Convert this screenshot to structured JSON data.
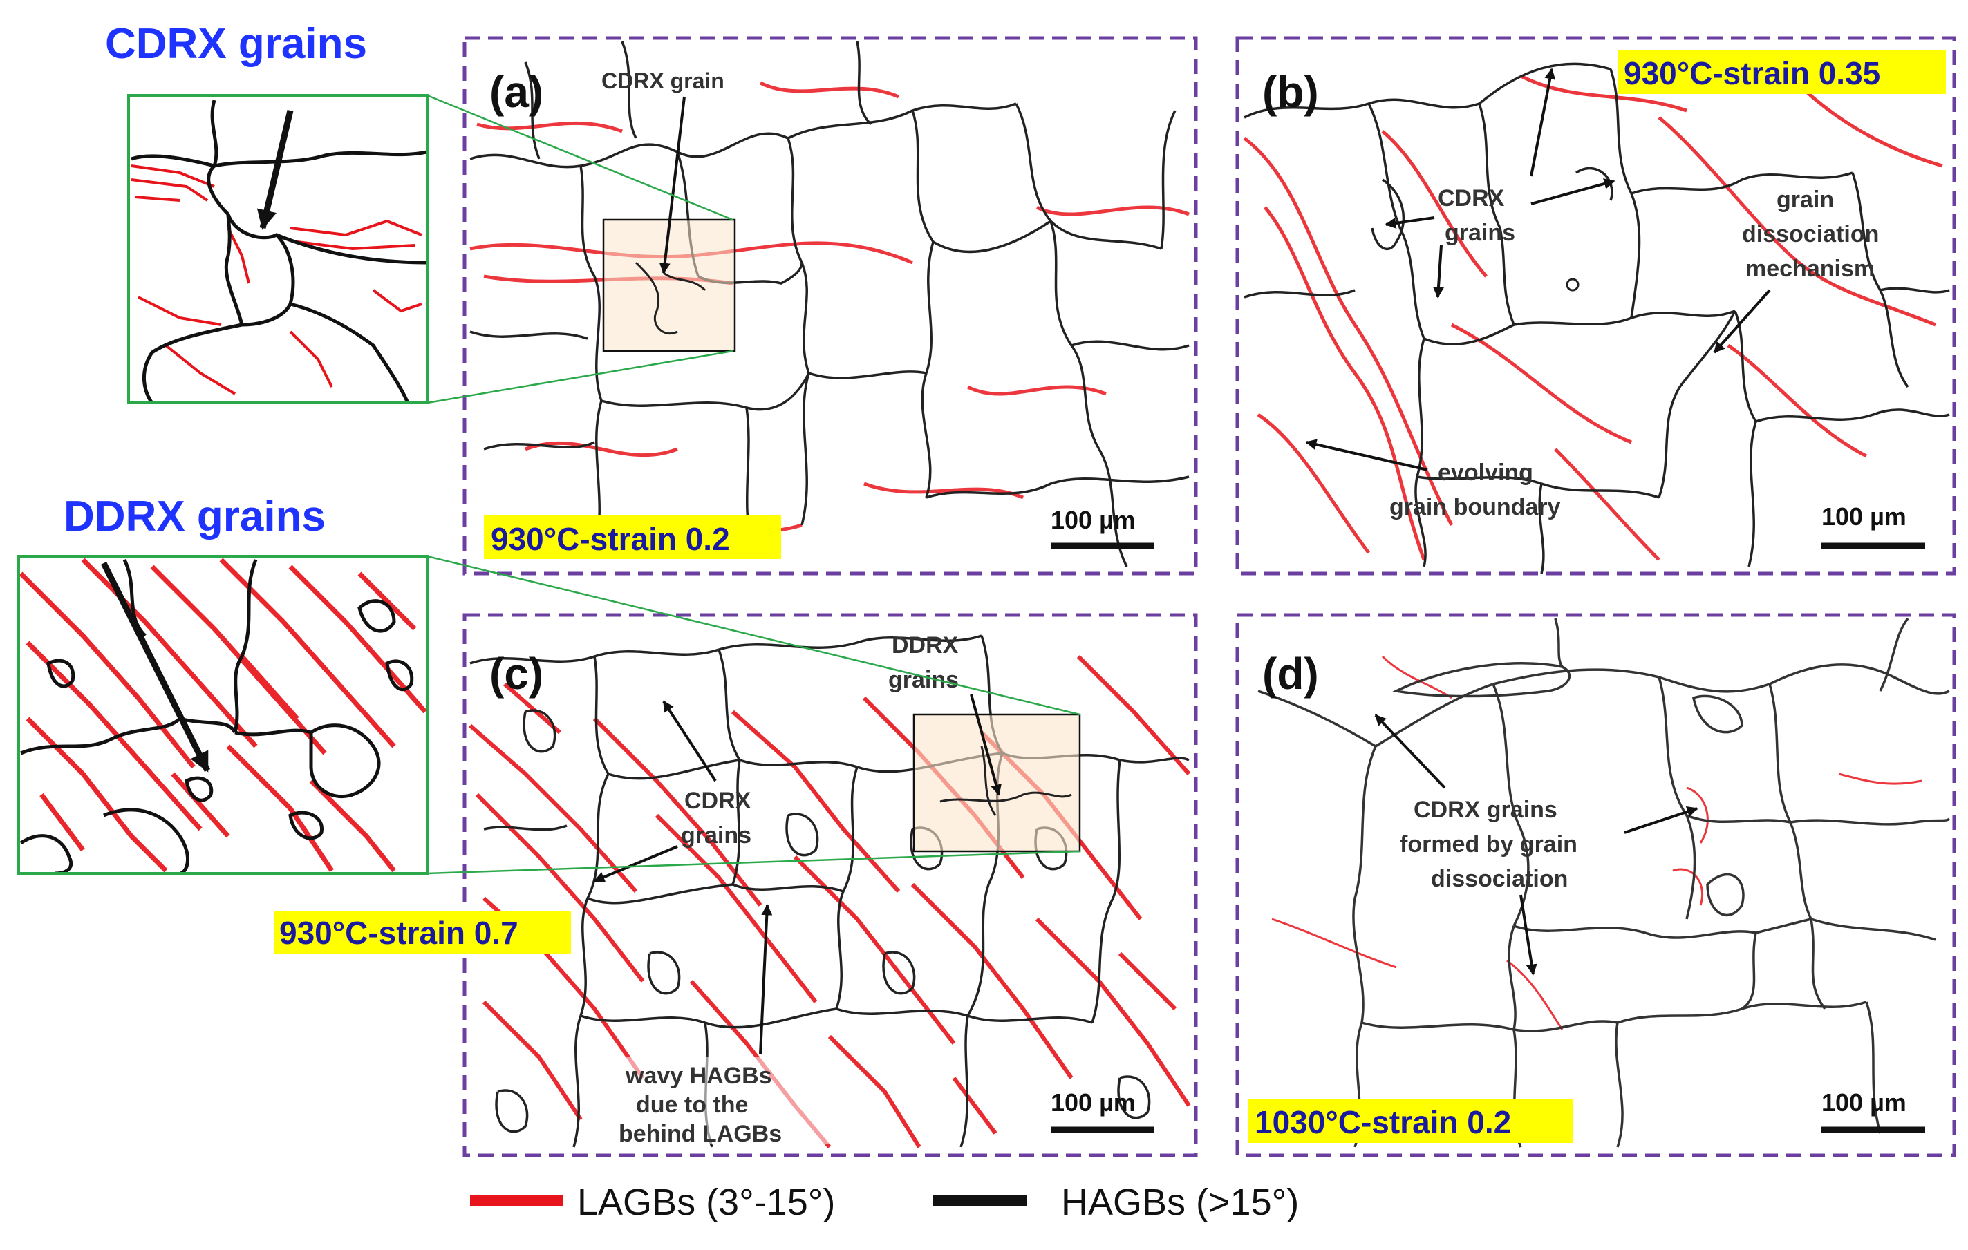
{
  "figure": {
    "insets": {
      "cdrx_title": "CDRX grains",
      "ddrx_title": "DDRX grains"
    },
    "panels": {
      "a": {
        "letter": "(a)",
        "condition": "930°C-strain 0.2",
        "scale_bar": "100 µm",
        "annotations": [
          "CDRX grain"
        ]
      },
      "b": {
        "letter": "(b)",
        "condition": "930°C-strain 0.35",
        "scale_bar": "100 µm",
        "annotations": [
          "CDRX",
          "grains",
          "grain",
          "dissociation",
          "mechanism",
          "evolving",
          "grain boundary"
        ]
      },
      "c": {
        "letter": "(c)",
        "condition": "930°C-strain 0.7",
        "scale_bar": "100 µm",
        "annotations": [
          "DDRX",
          "grains",
          "CDRX",
          "grains",
          "wavy HAGBs",
          "due to the",
          "behind LAGBs"
        ]
      },
      "d": {
        "letter": "(d)",
        "condition": "1030°C-strain 0.2",
        "scale_bar": "100 µm",
        "annotations": [
          "CDRX grains",
          "formed by grain",
          "dissociation"
        ]
      }
    },
    "legend": {
      "lagb": "LAGBs (3°-15°)",
      "hagb": "HAGBs (>15°)"
    },
    "colors": {
      "lagb": "#e8141b",
      "hagb": "#111111",
      "panel_border": "#6b3fa0",
      "inset_border": "#2aa84a",
      "condition_bg": "#ffff00",
      "inset_title": "#1f33ff"
    }
  }
}
